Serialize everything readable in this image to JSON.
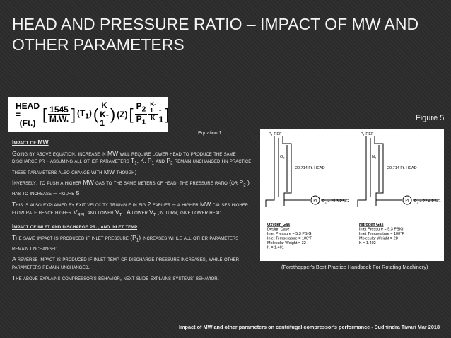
{
  "title": "HEAD AND PRESSURE RATIO – IMPACT OF MW AND OTHER PARAMETERS",
  "equation": {
    "lhs": "HEAD =",
    "lhs_unit": "(Ft.)",
    "c_num": "1545",
    "c_den": "M.W.",
    "t": [
      "(T",
      "1",
      ")"
    ],
    "k_num": "K",
    "k_den": "K-1",
    "z": "(Z)",
    "p_num": [
      "P",
      "2"
    ],
    "p_den": [
      "P",
      "1"
    ],
    "e_num": "K-1",
    "e_den": "K",
    "minus": "- 1"
  },
  "equation_caption": "Equation 1",
  "figure_label": "Figure 5",
  "sections": [
    {
      "heading": "Impact of MW",
      "paragraphs": [
        [
          "Going by above equation, increase in MW will require lower head to produce the same discharge pr - assuming all other parameters T",
          "1",
          ", K, P",
          "1",
          " and P",
          "2",
          " remain unchanged (in practice these parameters also change with MW though)"
        ],
        [
          "Inversely, to push a higher MW gas to the same meters of head, the pressure ratio (or P",
          "2",
          " ) has to increase – figure 5"
        ],
        [
          "This is also explained by exit velocity triangle in fig 2 earlier – a higher MW causes higher flow rate hence higher V",
          "REL",
          " and lower V",
          "T",
          " . A lower V",
          "T",
          " ,in turn, give lower head"
        ]
      ]
    },
    {
      "heading": "Impact of inlet and discharge pr., and inlet temp",
      "paragraphs": [
        [
          "The same impact is produced if inlet pressure (P",
          "1",
          ") increases while all other parameters remain unchanged."
        ],
        [
          "A reverse impact is produced if inlet temp or discharge pressure increases, while other parameters remain unchanged."
        ],
        [
          "The above explains compressor's behavior, next slide explains systems' behavior."
        ]
      ]
    }
  ],
  "figure": {
    "left": {
      "ref": [
        "P",
        "1",
        " REF"
      ],
      "gas": [
        "O",
        "2"
      ],
      "head": "20,714 Ft. HEAD",
      "gauge": "PI",
      "pressure": [
        "P",
        "2",
        " = 25.3 PSIG"
      ],
      "box": [
        "Oxygen Gas",
        "Design Case",
        "Inlet Pressure = 5.3 PSIG",
        "Inlet Temperature = 100°F",
        "Molecular Weight = 32",
        "K = 1.401"
      ]
    },
    "right": {
      "ref": [
        "P",
        "1",
        " REF"
      ],
      "gas": [
        "N",
        "2"
      ],
      "head": "20,714 Ft. HEAD",
      "gauge": "PI",
      "pressure": [
        "P",
        "2",
        " = 22.4 PSIG"
      ],
      "box": [
        "Nitrogen Gas",
        "Inlet Pressure = 5.3 PSIG",
        "Inlet Temperature = 100°F",
        "Molecular Weight = 28",
        "K = 1.402"
      ]
    }
  },
  "figure_caption": "(Forsthopper's Best Practice Handbook For Rotating Machinery)",
  "footer": "Impact of MW and other parameters on centrifugal compressor's performance - Sudhindra Tiwari Mar 2018"
}
